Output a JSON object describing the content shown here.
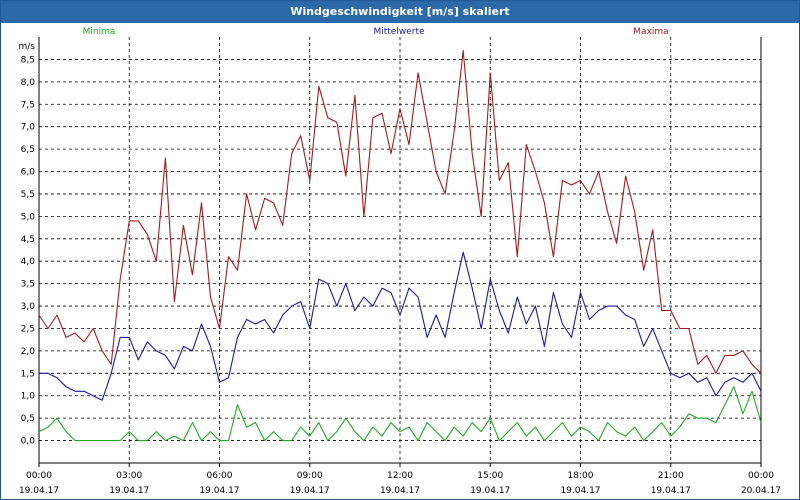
{
  "window": {
    "title": "Windgeschwindigkeit [m/s] skaliert"
  },
  "chart_data": {
    "type": "line",
    "title": "Windgeschwindigkeit [m/s] skaliert",
    "ylabel": "m/s",
    "xlabel": "",
    "ylim": [
      -0.5,
      9.0
    ],
    "xlim_hours": [
      0,
      24
    ],
    "yticks": [
      0.0,
      0.5,
      1.0,
      1.5,
      2.0,
      2.5,
      3.0,
      3.5,
      4.0,
      4.5,
      5.0,
      5.5,
      6.0,
      6.5,
      7.0,
      7.5,
      8.0,
      8.5
    ],
    "ytick_labels": [
      "0,0",
      "0,5",
      "1,0",
      "1,5",
      "2,0",
      "2,5",
      "3,0",
      "3,5",
      "4,0",
      "4,5",
      "5,0",
      "5,5",
      "6,0",
      "6,5",
      "7,0",
      "7,5",
      "8,0",
      "8,5"
    ],
    "xticks": [
      {
        "hour": 0,
        "time": "00:00",
        "date": "19.04.17"
      },
      {
        "hour": 3,
        "time": "03:00",
        "date": "19.04.17"
      },
      {
        "hour": 6,
        "time": "06:00",
        "date": "19.04.17"
      },
      {
        "hour": 9,
        "time": "09:00",
        "date": "19.04.17"
      },
      {
        "hour": 12,
        "time": "12:00",
        "date": "19.04.17"
      },
      {
        "hour": 15,
        "time": "15:00",
        "date": "19.04.17"
      },
      {
        "hour": 18,
        "time": "18:00",
        "date": "19.04.17"
      },
      {
        "hour": 21,
        "time": "21:00",
        "date": "19.04.17"
      },
      {
        "hour": 24,
        "time": "00:00",
        "date": "20.04.17"
      }
    ],
    "grid": true,
    "legend": [
      {
        "name": "Minima",
        "color": "#22aa22"
      },
      {
        "name": "Mittelwerte",
        "color": "#1a1aa8"
      },
      {
        "name": "Maxima",
        "color": "#a81a1a"
      }
    ],
    "series": [
      {
        "name": "Minima",
        "color": "#22aa22",
        "x": [
          0,
          0.3,
          0.6,
          0.9,
          1.2,
          1.5,
          1.8,
          2.1,
          2.4,
          2.7,
          3.0,
          3.3,
          3.6,
          3.9,
          4.2,
          4.5,
          4.8,
          5.1,
          5.4,
          5.7,
          6.0,
          6.3,
          6.6,
          6.9,
          7.2,
          7.5,
          7.8,
          8.1,
          8.4,
          8.7,
          9.0,
          9.3,
          9.6,
          9.9,
          10.2,
          10.5,
          10.8,
          11.1,
          11.4,
          11.7,
          12.0,
          12.3,
          12.6,
          12.9,
          13.2,
          13.5,
          13.8,
          14.1,
          14.4,
          14.7,
          15.0,
          15.3,
          15.6,
          15.9,
          16.2,
          16.5,
          16.8,
          17.1,
          17.4,
          17.7,
          18.0,
          18.3,
          18.6,
          18.9,
          19.2,
          19.5,
          19.8,
          20.1,
          20.4,
          20.7,
          21.0,
          21.3,
          21.6,
          21.9,
          22.2,
          22.5,
          22.8,
          23.1,
          23.4,
          23.7,
          24.0
        ],
        "values": [
          0.2,
          0.3,
          0.5,
          0.2,
          0.0,
          0.0,
          0.0,
          0.0,
          0.0,
          0.0,
          0.2,
          0.0,
          0.0,
          0.2,
          0.0,
          0.1,
          0.0,
          0.4,
          0.0,
          0.2,
          0.0,
          0.0,
          0.8,
          0.3,
          0.4,
          0.0,
          0.2,
          0.0,
          0.0,
          0.3,
          0.1,
          0.4,
          0.0,
          0.2,
          0.5,
          0.2,
          0.0,
          0.3,
          0.1,
          0.4,
          0.2,
          0.3,
          0.0,
          0.4,
          0.2,
          0.0,
          0.3,
          0.1,
          0.4,
          0.2,
          0.5,
          0.0,
          0.2,
          0.4,
          0.1,
          0.3,
          0.0,
          0.2,
          0.4,
          0.1,
          0.3,
          0.2,
          0.0,
          0.4,
          0.2,
          0.1,
          0.3,
          0.0,
          0.2,
          0.4,
          0.1,
          0.3,
          0.6,
          0.5,
          0.5,
          0.4,
          0.8,
          1.2,
          0.6,
          1.1,
          0.4
        ]
      },
      {
        "name": "Mittelwerte",
        "color": "#1a1aa8",
        "x": [
          0,
          0.3,
          0.6,
          0.9,
          1.2,
          1.5,
          1.8,
          2.1,
          2.4,
          2.7,
          3.0,
          3.3,
          3.6,
          3.9,
          4.2,
          4.5,
          4.8,
          5.1,
          5.4,
          5.7,
          6.0,
          6.3,
          6.6,
          6.9,
          7.2,
          7.5,
          7.8,
          8.1,
          8.4,
          8.7,
          9.0,
          9.3,
          9.6,
          9.9,
          10.2,
          10.5,
          10.8,
          11.1,
          11.4,
          11.7,
          12.0,
          12.3,
          12.6,
          12.9,
          13.2,
          13.5,
          13.8,
          14.1,
          14.4,
          14.7,
          15.0,
          15.3,
          15.6,
          15.9,
          16.2,
          16.5,
          16.8,
          17.1,
          17.4,
          17.7,
          18.0,
          18.3,
          18.6,
          18.9,
          19.2,
          19.5,
          19.8,
          20.1,
          20.4,
          20.7,
          21.0,
          21.3,
          21.6,
          21.9,
          22.2,
          22.5,
          22.8,
          23.1,
          23.4,
          23.7,
          24.0
        ],
        "values": [
          1.5,
          1.5,
          1.4,
          1.2,
          1.1,
          1.1,
          1.0,
          0.9,
          1.5,
          2.3,
          2.3,
          1.8,
          2.2,
          2.0,
          1.9,
          1.6,
          2.1,
          2.0,
          2.6,
          2.1,
          1.3,
          1.4,
          2.3,
          2.7,
          2.6,
          2.7,
          2.4,
          2.8,
          3.0,
          3.1,
          2.5,
          3.6,
          3.5,
          3.0,
          3.5,
          2.9,
          3.2,
          3.0,
          3.4,
          3.3,
          2.8,
          3.4,
          3.2,
          2.3,
          2.8,
          2.3,
          3.3,
          4.2,
          3.4,
          2.5,
          3.6,
          2.9,
          2.4,
          3.2,
          2.6,
          3.0,
          2.1,
          3.3,
          2.6,
          2.3,
          3.3,
          2.7,
          2.9,
          3.0,
          3.0,
          2.8,
          2.7,
          2.1,
          2.5,
          2.0,
          1.5,
          1.4,
          1.5,
          1.3,
          1.4,
          1.0,
          1.3,
          1.4,
          1.3,
          1.5,
          1.1
        ]
      },
      {
        "name": "Maxima",
        "color": "#a81a1a",
        "x": [
          0,
          0.3,
          0.6,
          0.9,
          1.2,
          1.5,
          1.8,
          2.1,
          2.4,
          2.7,
          3.0,
          3.3,
          3.6,
          3.9,
          4.2,
          4.5,
          4.8,
          5.1,
          5.4,
          5.7,
          6.0,
          6.3,
          6.6,
          6.9,
          7.2,
          7.5,
          7.8,
          8.1,
          8.4,
          8.7,
          9.0,
          9.3,
          9.6,
          9.9,
          10.2,
          10.5,
          10.8,
          11.1,
          11.4,
          11.7,
          12.0,
          12.3,
          12.6,
          12.9,
          13.2,
          13.5,
          13.8,
          14.1,
          14.4,
          14.7,
          15.0,
          15.3,
          15.6,
          15.9,
          16.2,
          16.5,
          16.8,
          17.1,
          17.4,
          17.7,
          18.0,
          18.3,
          18.6,
          18.9,
          19.2,
          19.5,
          19.8,
          20.1,
          20.4,
          20.7,
          21.0,
          21.3,
          21.6,
          21.9,
          22.2,
          22.5,
          22.8,
          23.1,
          23.4,
          23.7,
          24.0
        ],
        "values": [
          2.8,
          2.5,
          2.8,
          2.3,
          2.4,
          2.2,
          2.5,
          2.0,
          1.7,
          3.6,
          4.9,
          4.9,
          4.6,
          4.0,
          6.3,
          3.1,
          4.8,
          3.7,
          5.3,
          3.2,
          2.5,
          4.1,
          3.8,
          5.5,
          4.7,
          5.4,
          5.3,
          4.8,
          6.4,
          6.8,
          5.8,
          7.9,
          7.2,
          7.1,
          5.9,
          7.7,
          5.0,
          7.2,
          7.3,
          6.4,
          7.4,
          6.6,
          8.2,
          7.1,
          6.0,
          5.5,
          6.9,
          8.7,
          6.4,
          5.0,
          8.2,
          5.8,
          6.2,
          4.1,
          6.6,
          6.0,
          5.3,
          4.1,
          5.8,
          5.7,
          5.8,
          5.5,
          6.0,
          5.1,
          4.4,
          5.9,
          5.1,
          3.8,
          4.7,
          2.9,
          2.9,
          2.5,
          2.5,
          1.7,
          1.9,
          1.5,
          1.9,
          1.9,
          2.0,
          1.7,
          1.5
        ]
      }
    ]
  }
}
